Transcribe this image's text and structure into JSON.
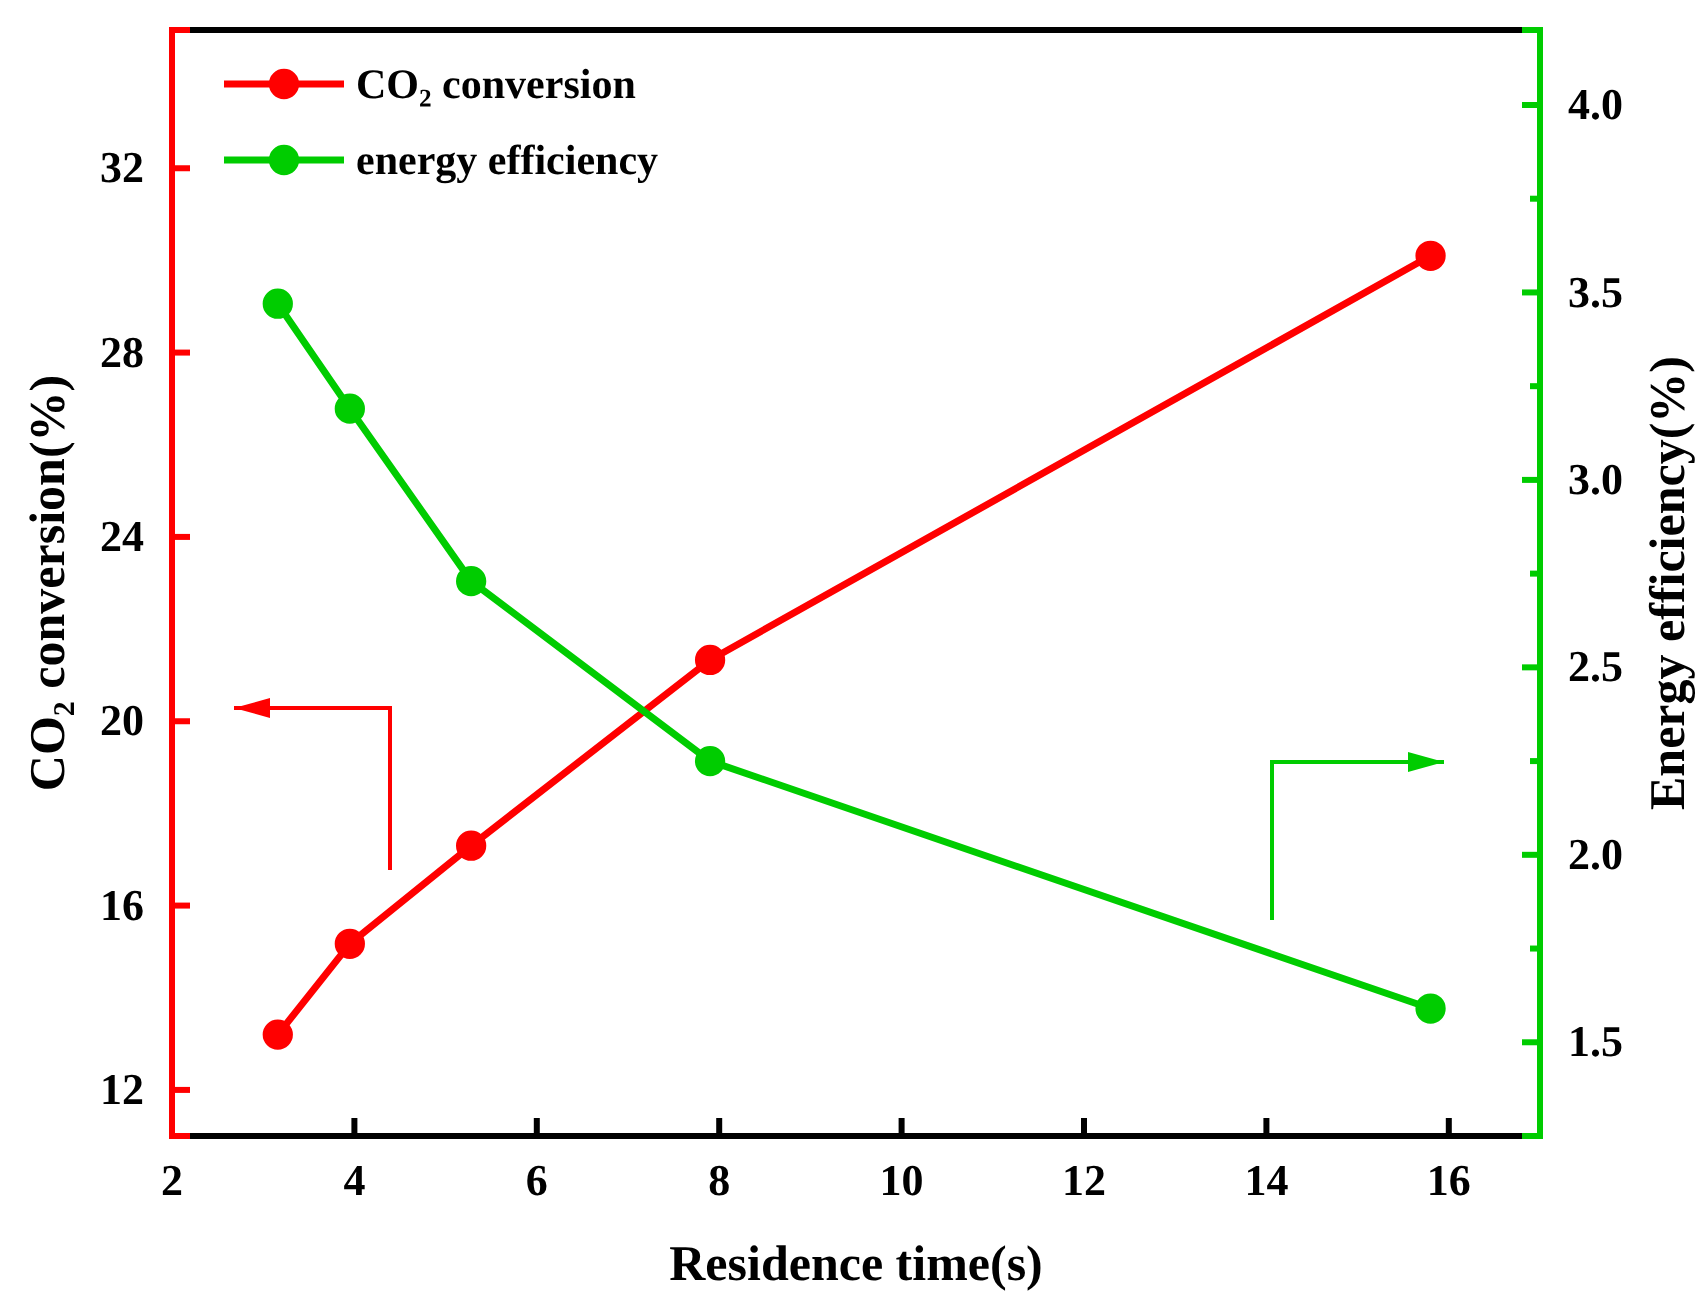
{
  "chart_data": {
    "type": "line",
    "xlabel": "Residence time(s)",
    "ylabel": "CO₂ conversion(%)",
    "y2label": "Energy efficiency(%)",
    "x": [
      3.16,
      3.95,
      5.28,
      7.9,
      15.8
    ],
    "series": [
      {
        "name": "CO₂ conversion",
        "color": "#ff0000",
        "values": [
          13.2,
          15.17,
          17.3,
          21.33,
          30.1
        ]
      },
      {
        "name": "energy efficiency",
        "color": "#00cc00",
        "axis": "y2",
        "values": [
          3.47,
          3.19,
          2.73,
          2.25,
          1.59
        ]
      }
    ],
    "xlim": [
      2,
      17
    ],
    "xticks": [
      2,
      4,
      6,
      8,
      10,
      12,
      14,
      16
    ],
    "ylim": [
      11,
      35
    ],
    "yticks": [
      12,
      16,
      20,
      24,
      28,
      32
    ],
    "y2lim": [
      1.25,
      4.2
    ],
    "y2ticks": [
      1.5,
      {
        "value": 1.75,
        "label": null
      },
      {
        "value": 2,
        "label": "2.0"
      },
      {
        "value": 2.25,
        "label": null
      },
      2.5,
      {
        "value": 2.75,
        "label": null
      },
      {
        "value": 3,
        "label": "3.0"
      },
      {
        "value": 3.25,
        "label": null
      },
      3.5,
      {
        "value": 3.75,
        "label": null
      },
      {
        "value": 4,
        "label": "4.0"
      }
    ],
    "legend": "top left",
    "marker": "circle",
    "line_style": "solid",
    "grid": false
  }
}
